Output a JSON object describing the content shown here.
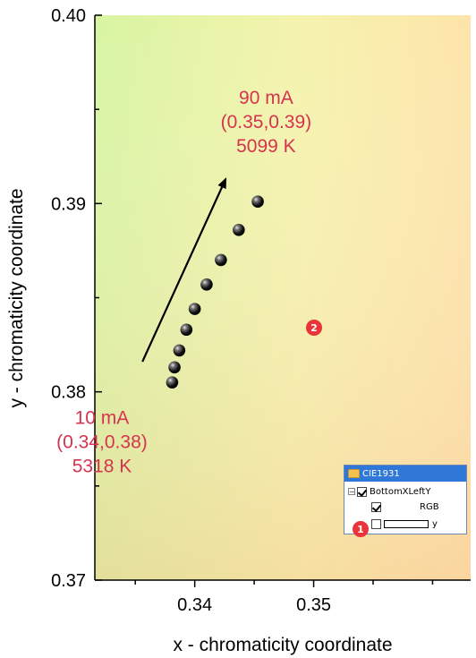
{
  "chart_data": {
    "type": "scatter",
    "xlabel": "x - chromaticity coordinate",
    "ylabel": "y - chromaticity coordinate",
    "xlim": [
      0.3316,
      0.3632
    ],
    "ylim": [
      0.37,
      0.4
    ],
    "xticks": [
      0.34,
      0.35
    ],
    "yticks": [
      0.37,
      0.38,
      0.39,
      0.4
    ],
    "x_minor_step": 0.005,
    "y_minor_step": 0.005,
    "x_tick_labels": [
      "0.34",
      "0.35"
    ],
    "y_tick_labels": [
      "0.37",
      "0.38",
      "0.39",
      "0.40"
    ],
    "grid": false,
    "points": [
      {
        "x": 0.3381,
        "y": 0.3805
      },
      {
        "x": 0.3383,
        "y": 0.3813
      },
      {
        "x": 0.3387,
        "y": 0.3822
      },
      {
        "x": 0.3393,
        "y": 0.3833
      },
      {
        "x": 0.34,
        "y": 0.3844
      },
      {
        "x": 0.341,
        "y": 0.3857
      },
      {
        "x": 0.3422,
        "y": 0.387
      },
      {
        "x": 0.3437,
        "y": 0.3886
      },
      {
        "x": 0.3453,
        "y": 0.3901
      }
    ],
    "arrow": {
      "from": {
        "x": 0.3356,
        "y": 0.3816
      },
      "to": {
        "x": 0.3426,
        "y": 0.3913
      }
    },
    "annotations": [
      {
        "lines": [
          "90 mA",
          "(0.35,0.39)",
          "5099 K"
        ],
        "x": 0.346,
        "y": 0.3953
      },
      {
        "lines": [
          "10 mA",
          "(0.34,0.38)",
          "5318 K"
        ],
        "x": 0.3322,
        "y": 0.3783
      }
    ],
    "background": "CIE1931 chromaticity gradient (yellow-green to orange)"
  },
  "layer_panel": {
    "title": "CIE1931",
    "items": [
      {
        "label": "BottomXLeftY",
        "checked": true,
        "expander": "−"
      },
      {
        "label": "RGB",
        "checked": true
      },
      {
        "label": "y",
        "checked": false
      }
    ]
  },
  "badges": [
    "1",
    "2"
  ],
  "colors": {
    "annotation": "#d6334f",
    "badge": "#e8343a",
    "panel_title": "#2f78d8"
  }
}
